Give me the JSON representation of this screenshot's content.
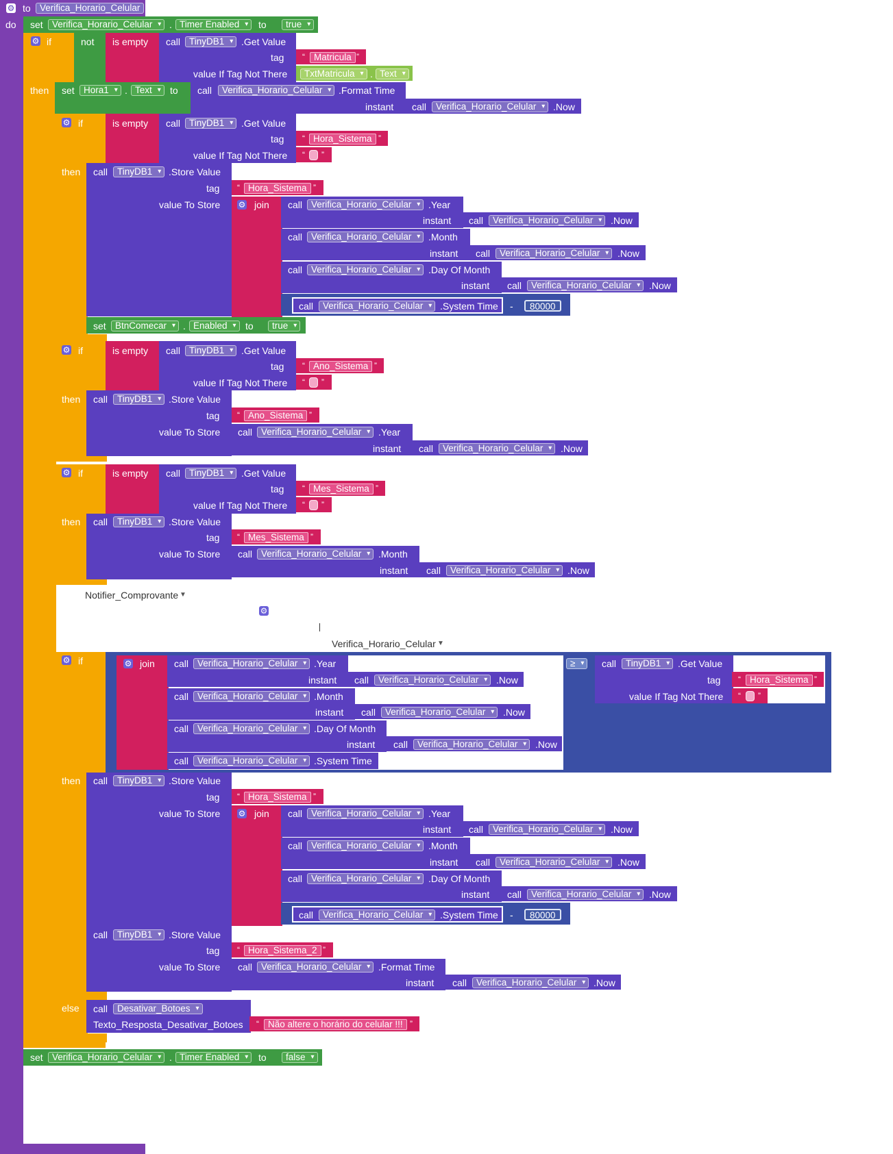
{
  "kw": {
    "to": "to",
    "do": "do",
    "set": "set",
    "call": "call",
    "if": "if",
    "then": "then",
    "else": "else",
    "not": "not",
    "is_empty": "is empty",
    "join": "join",
    "tag": "tag",
    "instant": "instant",
    "value_if_tag_not_there": "value If Tag Not There",
    "value_to_store": "value To Store",
    "dot": ".",
    "minus": "-",
    "gte": "≥",
    "get_value": ".Get Value",
    "store_value": ".Store Value",
    "format_time": ".Format Time",
    "now": ".Now",
    "year": ".Year",
    "month": ".Month",
    "day_of_month": ".Day Of Month",
    "system_time": ".System Time",
    "text_prop": "Text",
    "timer_enabled": "Timer Enabled",
    "enabled_prop": "Enabled",
    "true": "true",
    "false": "false",
    "open_quote": "“",
    "close_quote": "”"
  },
  "procedure": {
    "name": "Verifica_Horario_Celular"
  },
  "components": {
    "clock": "Verifica_Horario_Celular",
    "tinydb": "TinyDB1",
    "label_hora": "Hora1",
    "textbox": "TxtMatricula",
    "btn_comecar": "BtnComecar",
    "proc_desativar": "Desativar_Botoes",
    "notifier": "Notifier_Comprovante"
  },
  "strings": {
    "matricula": "Matricula",
    "hora_sistema": "Hora_Sistema",
    "ano_sistema": "Ano_Sistema",
    "mes_sistema": "Mes_Sistema",
    "hora_sistema_2": "Hora_Sistema_2",
    "aviso": "Não altere o horário do celular !!!"
  },
  "numbers": {
    "offset": "80000"
  },
  "param": {
    "texto_resposta": "Texto_Resposta_Desativar_Botoes"
  },
  "colors": {
    "procedure": "#7c3fb0",
    "control": "#f5a700",
    "logic_green": "#3e9b43",
    "text_pink": "#d21f5e",
    "component": "#5a3fbf",
    "math_blue": "#3a4fa5",
    "light_green": "#8ac34a"
  }
}
